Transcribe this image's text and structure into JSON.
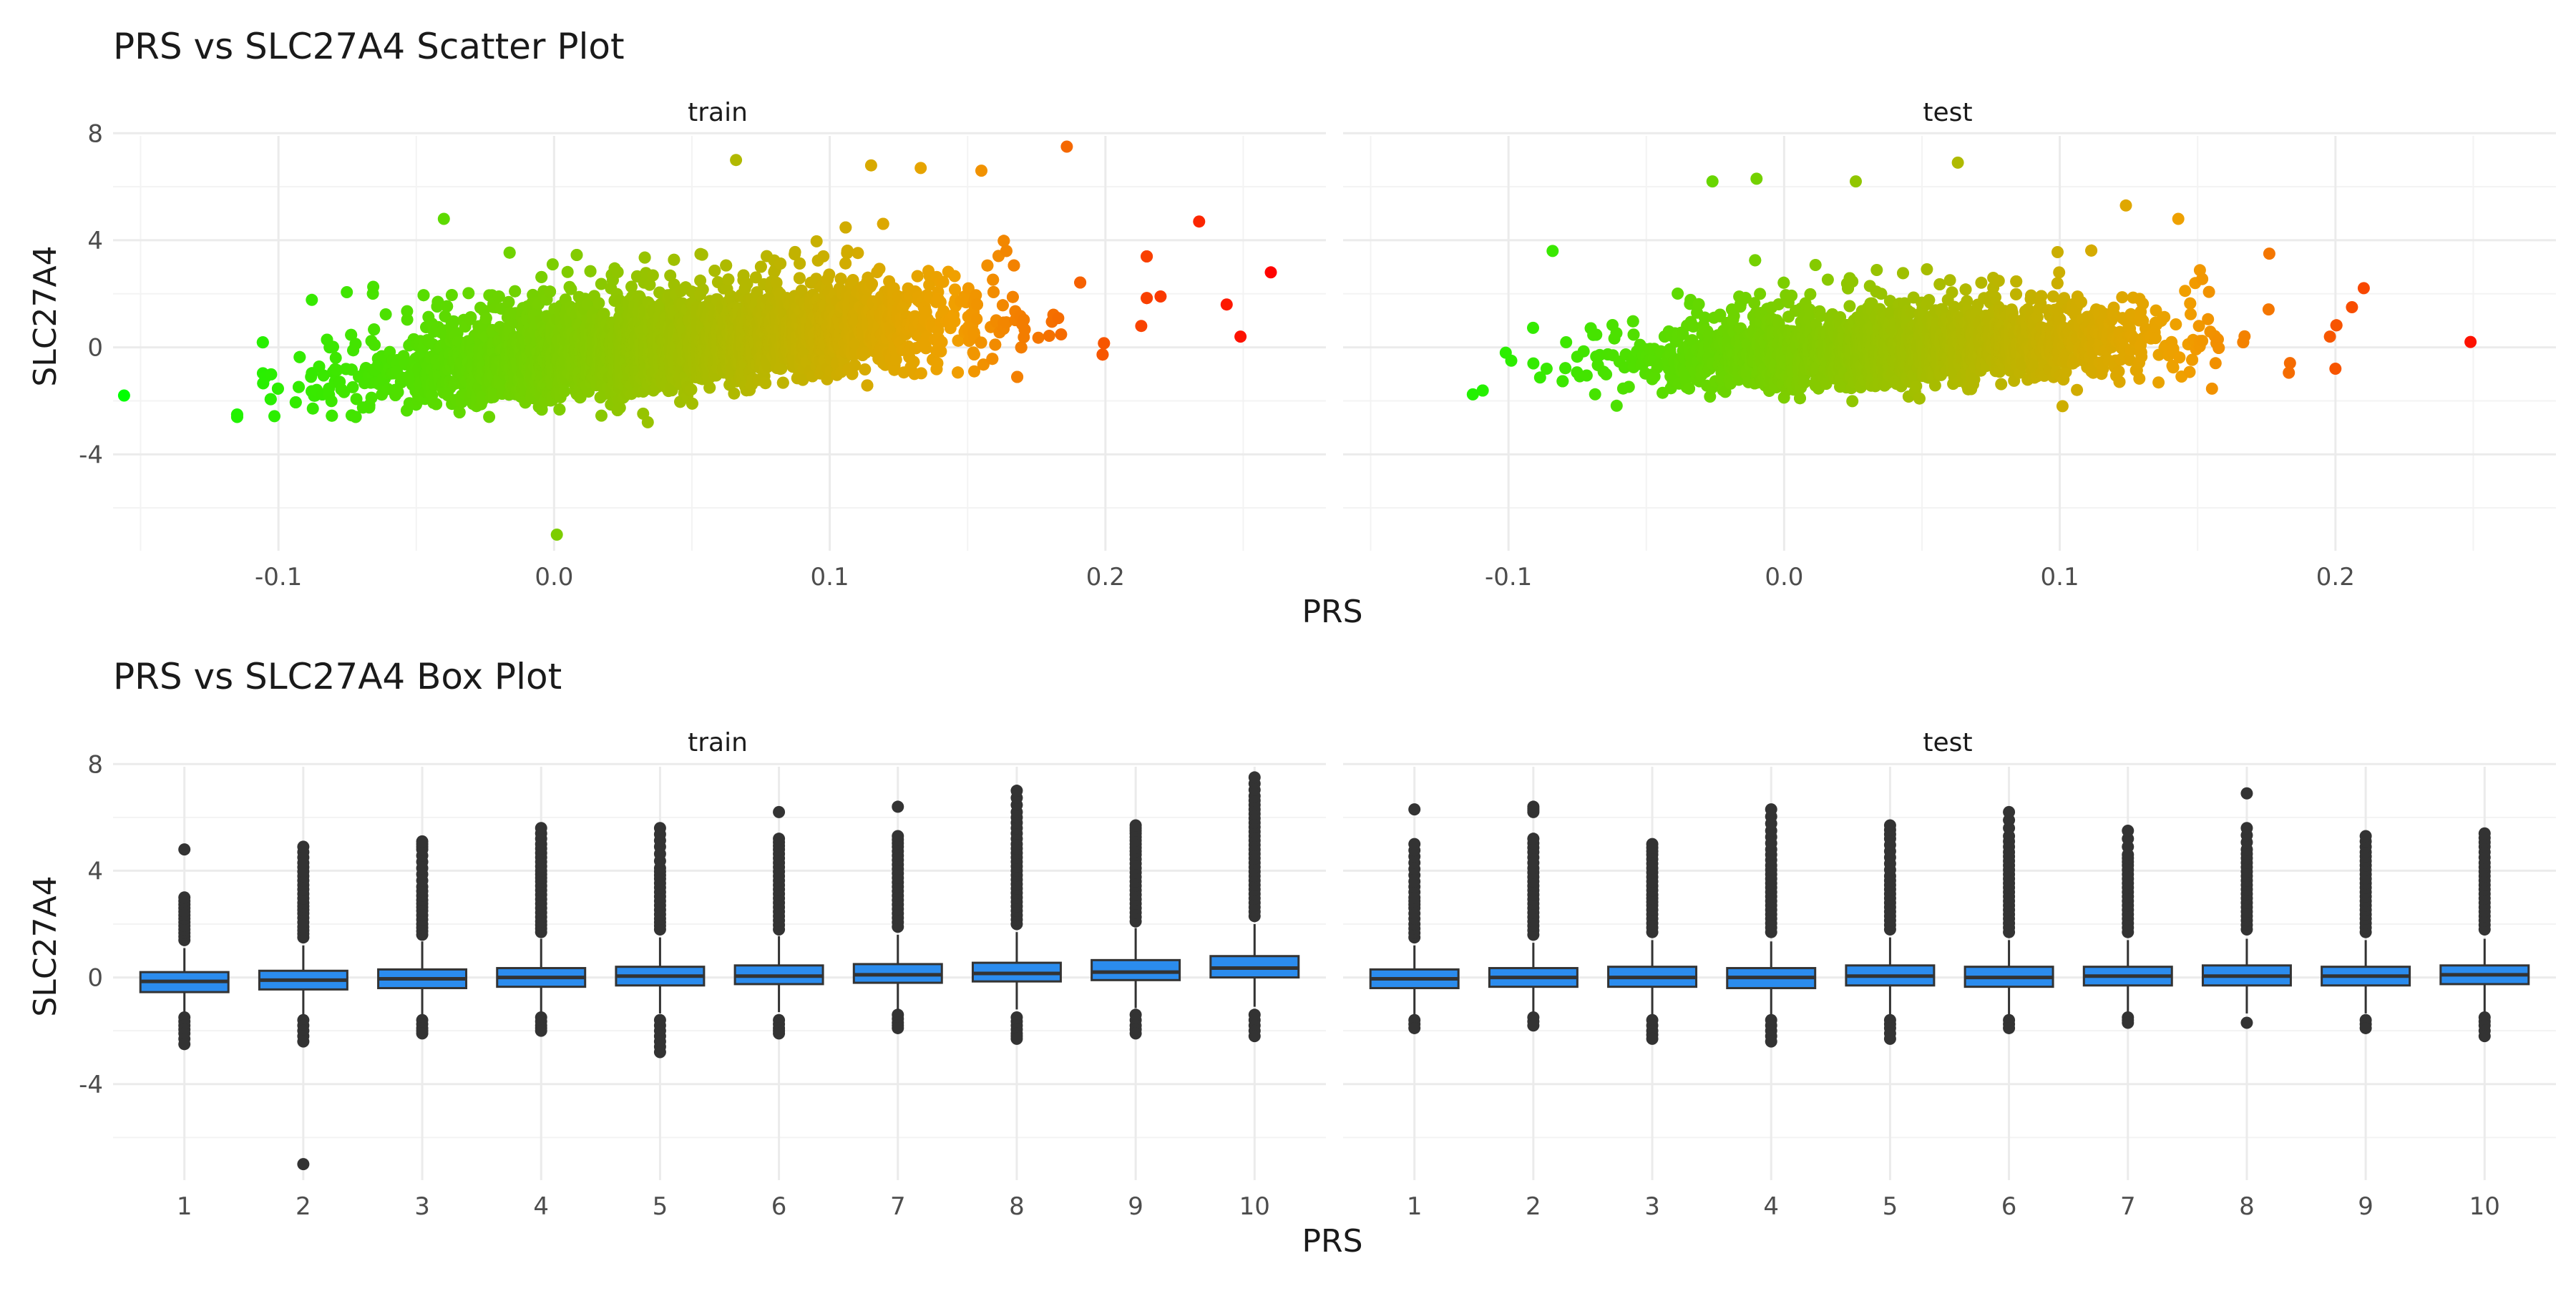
{
  "chart_data": [
    {
      "type": "scatter",
      "title": "PRS vs SLC27A4 Scatter Plot",
      "xlabel": "PRS",
      "ylabel": "SLC27A4",
      "xlim": [
        -0.16,
        0.28
      ],
      "ylim": [
        -7.6,
        7.9
      ],
      "x_ticks": [
        -0.1,
        0.0,
        0.1,
        0.2
      ],
      "x_tick_labels": [
        "-0.1",
        "0.0",
        "0.1",
        "0.2"
      ],
      "y_ticks": [
        -4,
        0,
        4,
        8
      ],
      "y_tick_labels": [
        "-4",
        "0",
        "4",
        "8"
      ],
      "grid": true,
      "color_scale": {
        "low": "#00ff00",
        "mid": "#f0a000",
        "high": "#ff0000",
        "by": "x"
      },
      "panels": [
        {
          "label": "train",
          "point_count_approx": 6000,
          "distribution": {
            "x_mean": 0.04,
            "x_sd": 0.05,
            "intercept": -0.35,
            "slope": 9.0,
            "y_sd": 0.75
          },
          "notable_points": [
            {
              "x": -0.156,
              "y": -1.8
            },
            {
              "x": 0.001,
              "y": -7.0
            },
            {
              "x": 0.186,
              "y": 7.5
            },
            {
              "x": 0.234,
              "y": 4.7
            },
            {
              "x": 0.26,
              "y": 2.8
            },
            {
              "x": 0.244,
              "y": 1.6
            },
            {
              "x": 0.249,
              "y": 0.4
            },
            {
              "x": 0.066,
              "y": 7.0
            },
            {
              "x": 0.115,
              "y": 6.8
            },
            {
              "x": 0.133,
              "y": 6.7
            },
            {
              "x": 0.155,
              "y": 6.6
            },
            {
              "x": -0.04,
              "y": 4.8
            },
            {
              "x": 0.034,
              "y": -2.8
            },
            {
              "x": 0.22,
              "y": 1.9
            },
            {
              "x": 0.213,
              "y": 0.8
            }
          ]
        },
        {
          "label": "test",
          "point_count_approx": 3000,
          "distribution": {
            "x_mean": 0.04,
            "x_sd": 0.045,
            "intercept": -0.2,
            "slope": 4.0,
            "y_sd": 0.65
          },
          "notable_points": [
            {
              "x": 0.249,
              "y": 0.2
            },
            {
              "x": -0.101,
              "y": -0.2
            },
            {
              "x": -0.099,
              "y": -0.5
            },
            {
              "x": -0.084,
              "y": 3.6
            },
            {
              "x": 0.063,
              "y": 6.9
            },
            {
              "x": -0.026,
              "y": 6.2
            },
            {
              "x": -0.01,
              "y": 6.3
            },
            {
              "x": 0.026,
              "y": 6.2
            },
            {
              "x": 0.124,
              "y": 5.3
            },
            {
              "x": 0.143,
              "y": 4.8
            },
            {
              "x": 0.176,
              "y": 3.5
            },
            {
              "x": 0.206,
              "y": 1.5
            },
            {
              "x": 0.2,
              "y": -0.8
            },
            {
              "x": 0.198,
              "y": 0.4
            },
            {
              "x": 0.101,
              "y": -2.2
            }
          ]
        }
      ]
    },
    {
      "type": "box",
      "title": "PRS vs SLC27A4 Box Plot",
      "xlabel": "PRS",
      "ylabel": "SLC27A4",
      "categories": [
        "1",
        "2",
        "3",
        "4",
        "5",
        "6",
        "7",
        "8",
        "9",
        "10"
      ],
      "ylim": [
        -7.6,
        7.9
      ],
      "y_ticks": [
        -4,
        0,
        4,
        8
      ],
      "y_tick_labels": [
        "-4",
        "0",
        "4",
        "8"
      ],
      "grid": true,
      "box_fill": "#2b8cee",
      "box_stroke": "#333333",
      "panels": [
        {
          "label": "train",
          "boxes": [
            {
              "q1": -0.55,
              "median": -0.15,
              "q3": 0.2,
              "wmin": -1.35,
              "wmax": 1.1,
              "out_high": [
                1.4,
                1.8,
                2.2,
                2.6,
                3.0,
                4.8
              ],
              "out_low": [
                -1.5,
                -1.8,
                -2.1,
                -2.5
              ]
            },
            {
              "q1": -0.45,
              "median": -0.1,
              "q3": 0.25,
              "wmin": -1.4,
              "wmax": 1.2,
              "out_high": [
                1.5,
                1.9,
                2.4,
                2.8,
                3.3,
                3.8,
                4.3,
                4.9
              ],
              "out_low": [
                -1.6,
                -2.0,
                -2.4,
                -7.0
              ]
            },
            {
              "q1": -0.4,
              "median": -0.05,
              "q3": 0.3,
              "wmin": -1.4,
              "wmax": 1.35,
              "out_high": [
                1.6,
                2.0,
                2.5,
                2.9,
                3.4,
                4.1,
                4.8,
                5.1
              ],
              "out_low": [
                -1.6,
                -1.9,
                -2.1
              ]
            },
            {
              "q1": -0.35,
              "median": 0.0,
              "q3": 0.35,
              "wmin": -1.35,
              "wmax": 1.45,
              "out_high": [
                1.7,
                2.1,
                2.6,
                3.1,
                3.6,
                4.0,
                4.5,
                5.0,
                5.6
              ],
              "out_low": [
                -1.5,
                -1.8,
                -2.0
              ]
            },
            {
              "q1": -0.3,
              "median": 0.05,
              "q3": 0.4,
              "wmin": -1.35,
              "wmax": 1.5,
              "out_high": [
                1.8,
                2.2,
                2.7,
                3.2,
                3.7,
                4.1,
                4.9,
                5.6
              ],
              "out_low": [
                -1.6,
                -2.0,
                -2.4,
                -2.8
              ]
            },
            {
              "q1": -0.25,
              "median": 0.05,
              "q3": 0.45,
              "wmin": -1.3,
              "wmax": 1.55,
              "out_high": [
                1.8,
                2.3,
                2.8,
                3.3,
                3.8,
                4.3,
                4.8,
                5.2,
                6.2
              ],
              "out_low": [
                -1.6,
                -1.9,
                -2.1
              ]
            },
            {
              "q1": -0.2,
              "median": 0.1,
              "q3": 0.5,
              "wmin": -1.25,
              "wmax": 1.6,
              "out_high": [
                1.9,
                2.4,
                2.9,
                3.4,
                3.9,
                4.4,
                4.9,
                5.3,
                6.4
              ],
              "out_low": [
                -1.4,
                -1.7,
                -1.9
              ]
            },
            {
              "q1": -0.15,
              "median": 0.15,
              "q3": 0.55,
              "wmin": -1.2,
              "wmax": 1.7,
              "out_high": [
                2.0,
                2.5,
                3.0,
                3.5,
                4.0,
                4.5,
                5.0,
                5.6,
                6.2,
                7.0
              ],
              "out_low": [
                -1.5,
                -1.8,
                -2.1,
                -2.3
              ]
            },
            {
              "q1": -0.1,
              "median": 0.2,
              "q3": 0.65,
              "wmin": -1.15,
              "wmax": 1.85,
              "out_high": [
                2.1,
                2.6,
                3.1,
                3.6,
                4.1,
                4.6,
                5.0,
                5.4,
                5.7
              ],
              "out_low": [
                -1.4,
                -1.8,
                -2.1
              ]
            },
            {
              "q1": 0.0,
              "median": 0.35,
              "q3": 0.8,
              "wmin": -1.1,
              "wmax": 2.0,
              "out_high": [
                2.3,
                2.8,
                3.3,
                3.8,
                4.3,
                4.8,
                5.3,
                5.8,
                6.3,
                6.8,
                7.5
              ],
              "out_low": [
                -1.4,
                -1.8,
                -2.2
              ]
            }
          ]
        },
        {
          "label": "test",
          "boxes": [
            {
              "q1": -0.4,
              "median": -0.05,
              "q3": 0.3,
              "wmin": -1.4,
              "wmax": 1.2,
              "out_high": [
                1.5,
                2.0,
                2.6,
                3.0,
                3.6,
                4.3,
                5.0,
                6.3
              ],
              "out_low": [
                -1.6,
                -1.9
              ]
            },
            {
              "q1": -0.35,
              "median": 0.0,
              "q3": 0.35,
              "wmin": -1.35,
              "wmax": 1.3,
              "out_high": [
                1.6,
                2.1,
                2.6,
                3.1,
                3.6,
                4.1,
                4.7,
                5.2,
                6.2,
                6.4
              ],
              "out_low": [
                -1.5,
                -1.8
              ]
            },
            {
              "q1": -0.35,
              "median": 0.0,
              "q3": 0.4,
              "wmin": -1.45,
              "wmax": 1.4,
              "out_high": [
                1.7,
                2.2,
                2.7,
                3.1,
                3.6,
                4.1,
                4.6,
                5.0
              ],
              "out_low": [
                -1.6,
                -2.0,
                -2.3
              ]
            },
            {
              "q1": -0.4,
              "median": 0.0,
              "q3": 0.35,
              "wmin": -1.4,
              "wmax": 1.35,
              "out_high": [
                1.7,
                2.2,
                2.7,
                3.2,
                3.7,
                4.2,
                4.8,
                5.5,
                6.3
              ],
              "out_low": [
                -1.6,
                -2.0,
                -2.4
              ]
            },
            {
              "q1": -0.3,
              "median": 0.05,
              "q3": 0.45,
              "wmin": -1.4,
              "wmax": 1.5,
              "out_high": [
                1.8,
                2.3,
                2.8,
                3.3,
                3.8,
                4.5,
                5.2,
                5.7
              ],
              "out_low": [
                -1.6,
                -1.9,
                -2.3
              ]
            },
            {
              "q1": -0.35,
              "median": 0.0,
              "q3": 0.4,
              "wmin": -1.4,
              "wmax": 1.4,
              "out_high": [
                1.7,
                2.2,
                2.7,
                3.2,
                3.7,
                4.2,
                4.7,
                5.3,
                6.2
              ],
              "out_low": [
                -1.6,
                -1.9
              ]
            },
            {
              "q1": -0.3,
              "median": 0.05,
              "q3": 0.4,
              "wmin": -1.35,
              "wmax": 1.4,
              "out_high": [
                1.7,
                2.2,
                2.7,
                3.2,
                3.7,
                4.2,
                4.6,
                5.5
              ],
              "out_low": [
                -1.5,
                -1.7
              ]
            },
            {
              "q1": -0.3,
              "median": 0.05,
              "q3": 0.45,
              "wmin": -1.35,
              "wmax": 1.45,
              "out_high": [
                1.8,
                2.3,
                2.8,
                3.3,
                3.8,
                4.3,
                4.8,
                5.6,
                6.9
              ],
              "out_low": [
                -1.7
              ]
            },
            {
              "q1": -0.3,
              "median": 0.05,
              "q3": 0.4,
              "wmin": -1.35,
              "wmax": 1.4,
              "out_high": [
                1.7,
                2.2,
                2.7,
                3.2,
                3.7,
                4.2,
                4.7,
                5.3
              ],
              "out_low": [
                -1.6,
                -1.9
              ]
            },
            {
              "q1": -0.25,
              "median": 0.1,
              "q3": 0.45,
              "wmin": -1.3,
              "wmax": 1.45,
              "out_high": [
                1.8,
                2.3,
                2.8,
                3.3,
                3.8,
                4.3,
                4.9,
                5.4
              ],
              "out_low": [
                -1.5,
                -1.8,
                -2.2
              ]
            }
          ]
        }
      ]
    }
  ]
}
